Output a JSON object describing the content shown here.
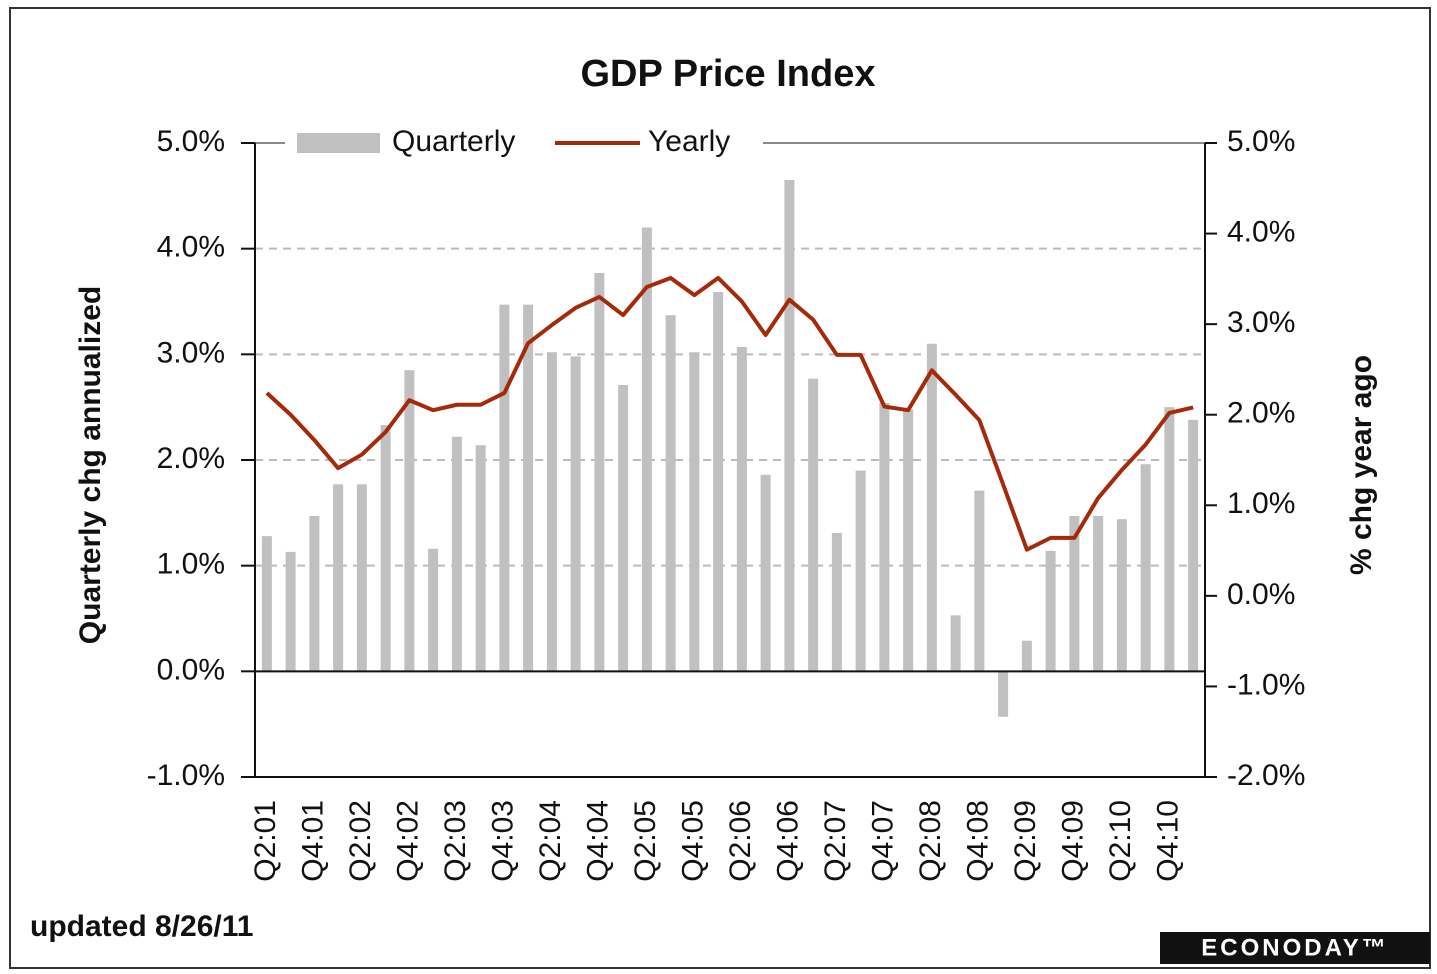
{
  "chart_data": {
    "type": "bar_line",
    "title": "GDP Price Index",
    "y_label": "Quarterly chg annualized",
    "y2_label": "% chg year ago",
    "note": "updated 8/26/11",
    "source": "ECONODAY™",
    "categories": [
      "Q2:01",
      null,
      "Q4:01",
      null,
      "Q2:02",
      null,
      "Q4:02",
      null,
      "Q2:03",
      null,
      "Q4:03",
      null,
      "Q2:04",
      null,
      "Q4:04",
      null,
      "Q2:05",
      null,
      "Q4:05",
      null,
      "Q2:06",
      null,
      "Q4:06",
      null,
      "Q2:07",
      null,
      "Q4:07",
      null,
      "Q2:08",
      null,
      "Q4:08",
      null,
      "Q2:09",
      null,
      "Q4:09",
      null,
      "Q2:10",
      null,
      "Q4:10",
      null
    ],
    "series": [
      {
        "name": "Quarterly",
        "type": "bar",
        "axis": "y",
        "color": "#c0c0c0",
        "values": [
          1.28,
          1.13,
          1.47,
          1.77,
          1.77,
          2.33,
          2.85,
          1.16,
          2.22,
          2.14,
          3.47,
          3.47,
          3.02,
          2.98,
          3.77,
          2.71,
          4.2,
          3.37,
          3.02,
          3.59,
          3.07,
          1.86,
          4.65,
          2.77,
          1.31,
          1.9,
          2.54,
          2.48,
          3.1,
          0.53,
          1.71,
          -0.43,
          0.29,
          1.14,
          1.47,
          1.47,
          1.44,
          1.96,
          2.5,
          2.38
        ]
      },
      {
        "name": "Yearly",
        "type": "line",
        "axis": "y2",
        "color": "#a52a0a",
        "values": [
          2.24,
          2.0,
          1.72,
          1.41,
          1.56,
          1.81,
          2.16,
          2.05,
          2.11,
          2.11,
          2.24,
          2.79,
          2.99,
          3.18,
          3.3,
          3.1,
          3.41,
          3.51,
          3.32,
          3.51,
          3.25,
          2.88,
          3.27,
          3.05,
          2.66,
          2.66,
          2.09,
          2.05,
          2.49,
          2.22,
          1.94,
          1.23,
          0.51,
          0.64,
          0.64,
          1.08,
          1.39,
          1.67,
          2.02,
          2.08
        ]
      }
    ],
    "ylim": [
      -1,
      5
    ],
    "yticks": [
      {
        "value": -1,
        "label": "-1.0%"
      },
      {
        "value": 0,
        "label": "0.0%"
      },
      {
        "value": 1,
        "label": "1.0%"
      },
      {
        "value": 2,
        "label": "2.0%"
      },
      {
        "value": 3,
        "label": "3.0%"
      },
      {
        "value": 4,
        "label": "4.0%"
      },
      {
        "value": 5,
        "label": "5.0%"
      }
    ],
    "y2lim": [
      -2,
      5
    ],
    "y2ticks": [
      {
        "value": -2,
        "label": "-2.0%"
      },
      {
        "value": -1,
        "label": "-1.0%"
      },
      {
        "value": 0,
        "label": "0.0%"
      },
      {
        "value": 1,
        "label": "1.0%"
      },
      {
        "value": 2,
        "label": "2.0%"
      },
      {
        "value": 3,
        "label": "3.0%"
      },
      {
        "value": 4,
        "label": "4.0%"
      },
      {
        "value": 5,
        "label": "5.0%"
      }
    ],
    "grid": true,
    "legend": "top"
  }
}
